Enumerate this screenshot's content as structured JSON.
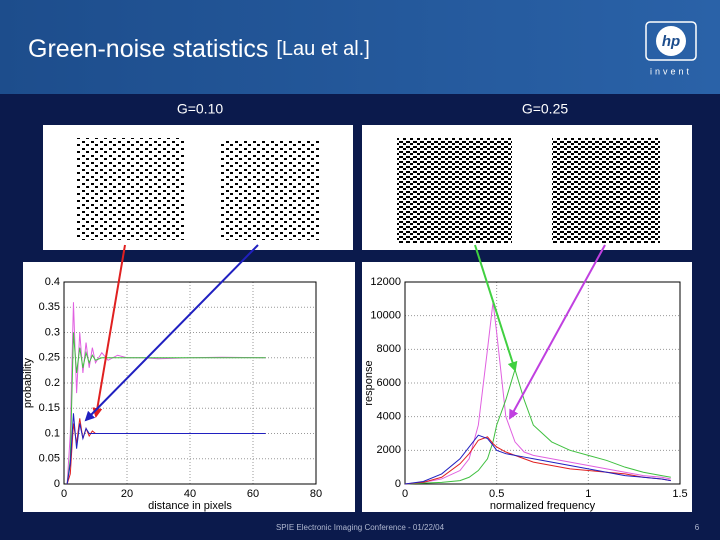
{
  "header": {
    "title": "Green-noise statistics",
    "citation": "[Lau et al.]",
    "logo_text": "invent"
  },
  "panels": [
    {
      "label": "G=0.10"
    },
    {
      "label": "G=0.25"
    }
  ],
  "chart_data": [
    {
      "type": "line",
      "xlabel": "distance in pixels",
      "ylabel": "probability",
      "xlim": [
        0,
        80
      ],
      "xticks": [
        0,
        20,
        40,
        60,
        80
      ],
      "ylim": [
        0,
        0.4
      ],
      "yticks": [
        0,
        0.05,
        0.1,
        0.15,
        0.2,
        0.25,
        0.3,
        0.35,
        0.4
      ],
      "grid": true,
      "x": [
        1,
        2,
        3,
        4,
        5,
        6,
        7,
        8,
        9,
        10,
        12,
        14,
        17,
        20,
        25,
        30,
        40,
        50,
        64
      ],
      "series": [
        {
          "color": "#e060e0",
          "values": [
            0,
            0.1,
            0.36,
            0.18,
            0.3,
            0.22,
            0.28,
            0.23,
            0.27,
            0.24,
            0.26,
            0.245,
            0.255,
            0.25,
            0.25,
            0.248,
            0.25,
            0.251,
            0.25
          ]
        },
        {
          "color": "#40c040",
          "values": [
            0,
            0.05,
            0.3,
            0.22,
            0.27,
            0.23,
            0.26,
            0.24,
            0.255,
            0.245,
            0.25,
            0.25,
            0.25,
            0.25,
            0.25,
            0.25,
            0.25,
            0.25,
            0.25
          ]
        },
        {
          "color": "#e02020",
          "values": [
            0,
            0.02,
            0.12,
            0.08,
            0.13,
            0.09,
            0.11,
            0.095,
            0.105,
            0.1,
            0.1,
            0.1,
            0.1,
            0.1,
            0.1,
            0.1,
            0.1,
            0.1,
            0.1
          ]
        },
        {
          "color": "#2020c0",
          "values": [
            0,
            0.04,
            0.14,
            0.07,
            0.12,
            0.09,
            0.11,
            0.1,
            0.1,
            0.1,
            0.1,
            0.1,
            0.1,
            0.1,
            0.1,
            0.1,
            0.1,
            0.1,
            0.1
          ]
        }
      ]
    },
    {
      "type": "line",
      "xlabel": "normalized frequency",
      "ylabel": "response",
      "xlim": [
        0,
        1.5
      ],
      "xticks": [
        0,
        0.5,
        1,
        1.5
      ],
      "ylim": [
        0,
        12000
      ],
      "yticks": [
        0,
        2000,
        4000,
        6000,
        8000,
        10000,
        12000
      ],
      "grid": true,
      "x": [
        0,
        0.1,
        0.2,
        0.3,
        0.35,
        0.4,
        0.45,
        0.48,
        0.5,
        0.55,
        0.6,
        0.65,
        0.7,
        0.8,
        0.9,
        1,
        1.1,
        1.2,
        1.3,
        1.4,
        1.45
      ],
      "series": [
        {
          "color": "#e060e0",
          "values": [
            0,
            100,
            300,
            800,
            1500,
            3500,
            8000,
            10800,
            9000,
            4000,
            2500,
            1900,
            1700,
            1500,
            1300,
            1100,
            900,
            700,
            500,
            400,
            300
          ]
        },
        {
          "color": "#40c040",
          "values": [
            0,
            50,
            100,
            200,
            400,
            800,
            1500,
            2500,
            3500,
            5000,
            6800,
            5000,
            3500,
            2500,
            2000,
            1700,
            1400,
            1000,
            700,
            500,
            400
          ]
        },
        {
          "color": "#e02020",
          "values": [
            0,
            100,
            400,
            1200,
            1800,
            2600,
            2800,
            2400,
            2200,
            1900,
            1700,
            1500,
            1300,
            1100,
            900,
            800,
            700,
            600,
            400,
            300,
            200
          ]
        },
        {
          "color": "#2020c0",
          "values": [
            0,
            150,
            600,
            1500,
            2200,
            2900,
            2700,
            2300,
            2000,
            1800,
            1700,
            1600,
            1500,
            1300,
            1100,
            900,
            700,
            500,
            400,
            300,
            200
          ]
        }
      ]
    }
  ],
  "footer": {
    "conference": "SPIE Electronic Imaging Conference - 01/22/04",
    "page": 6
  }
}
